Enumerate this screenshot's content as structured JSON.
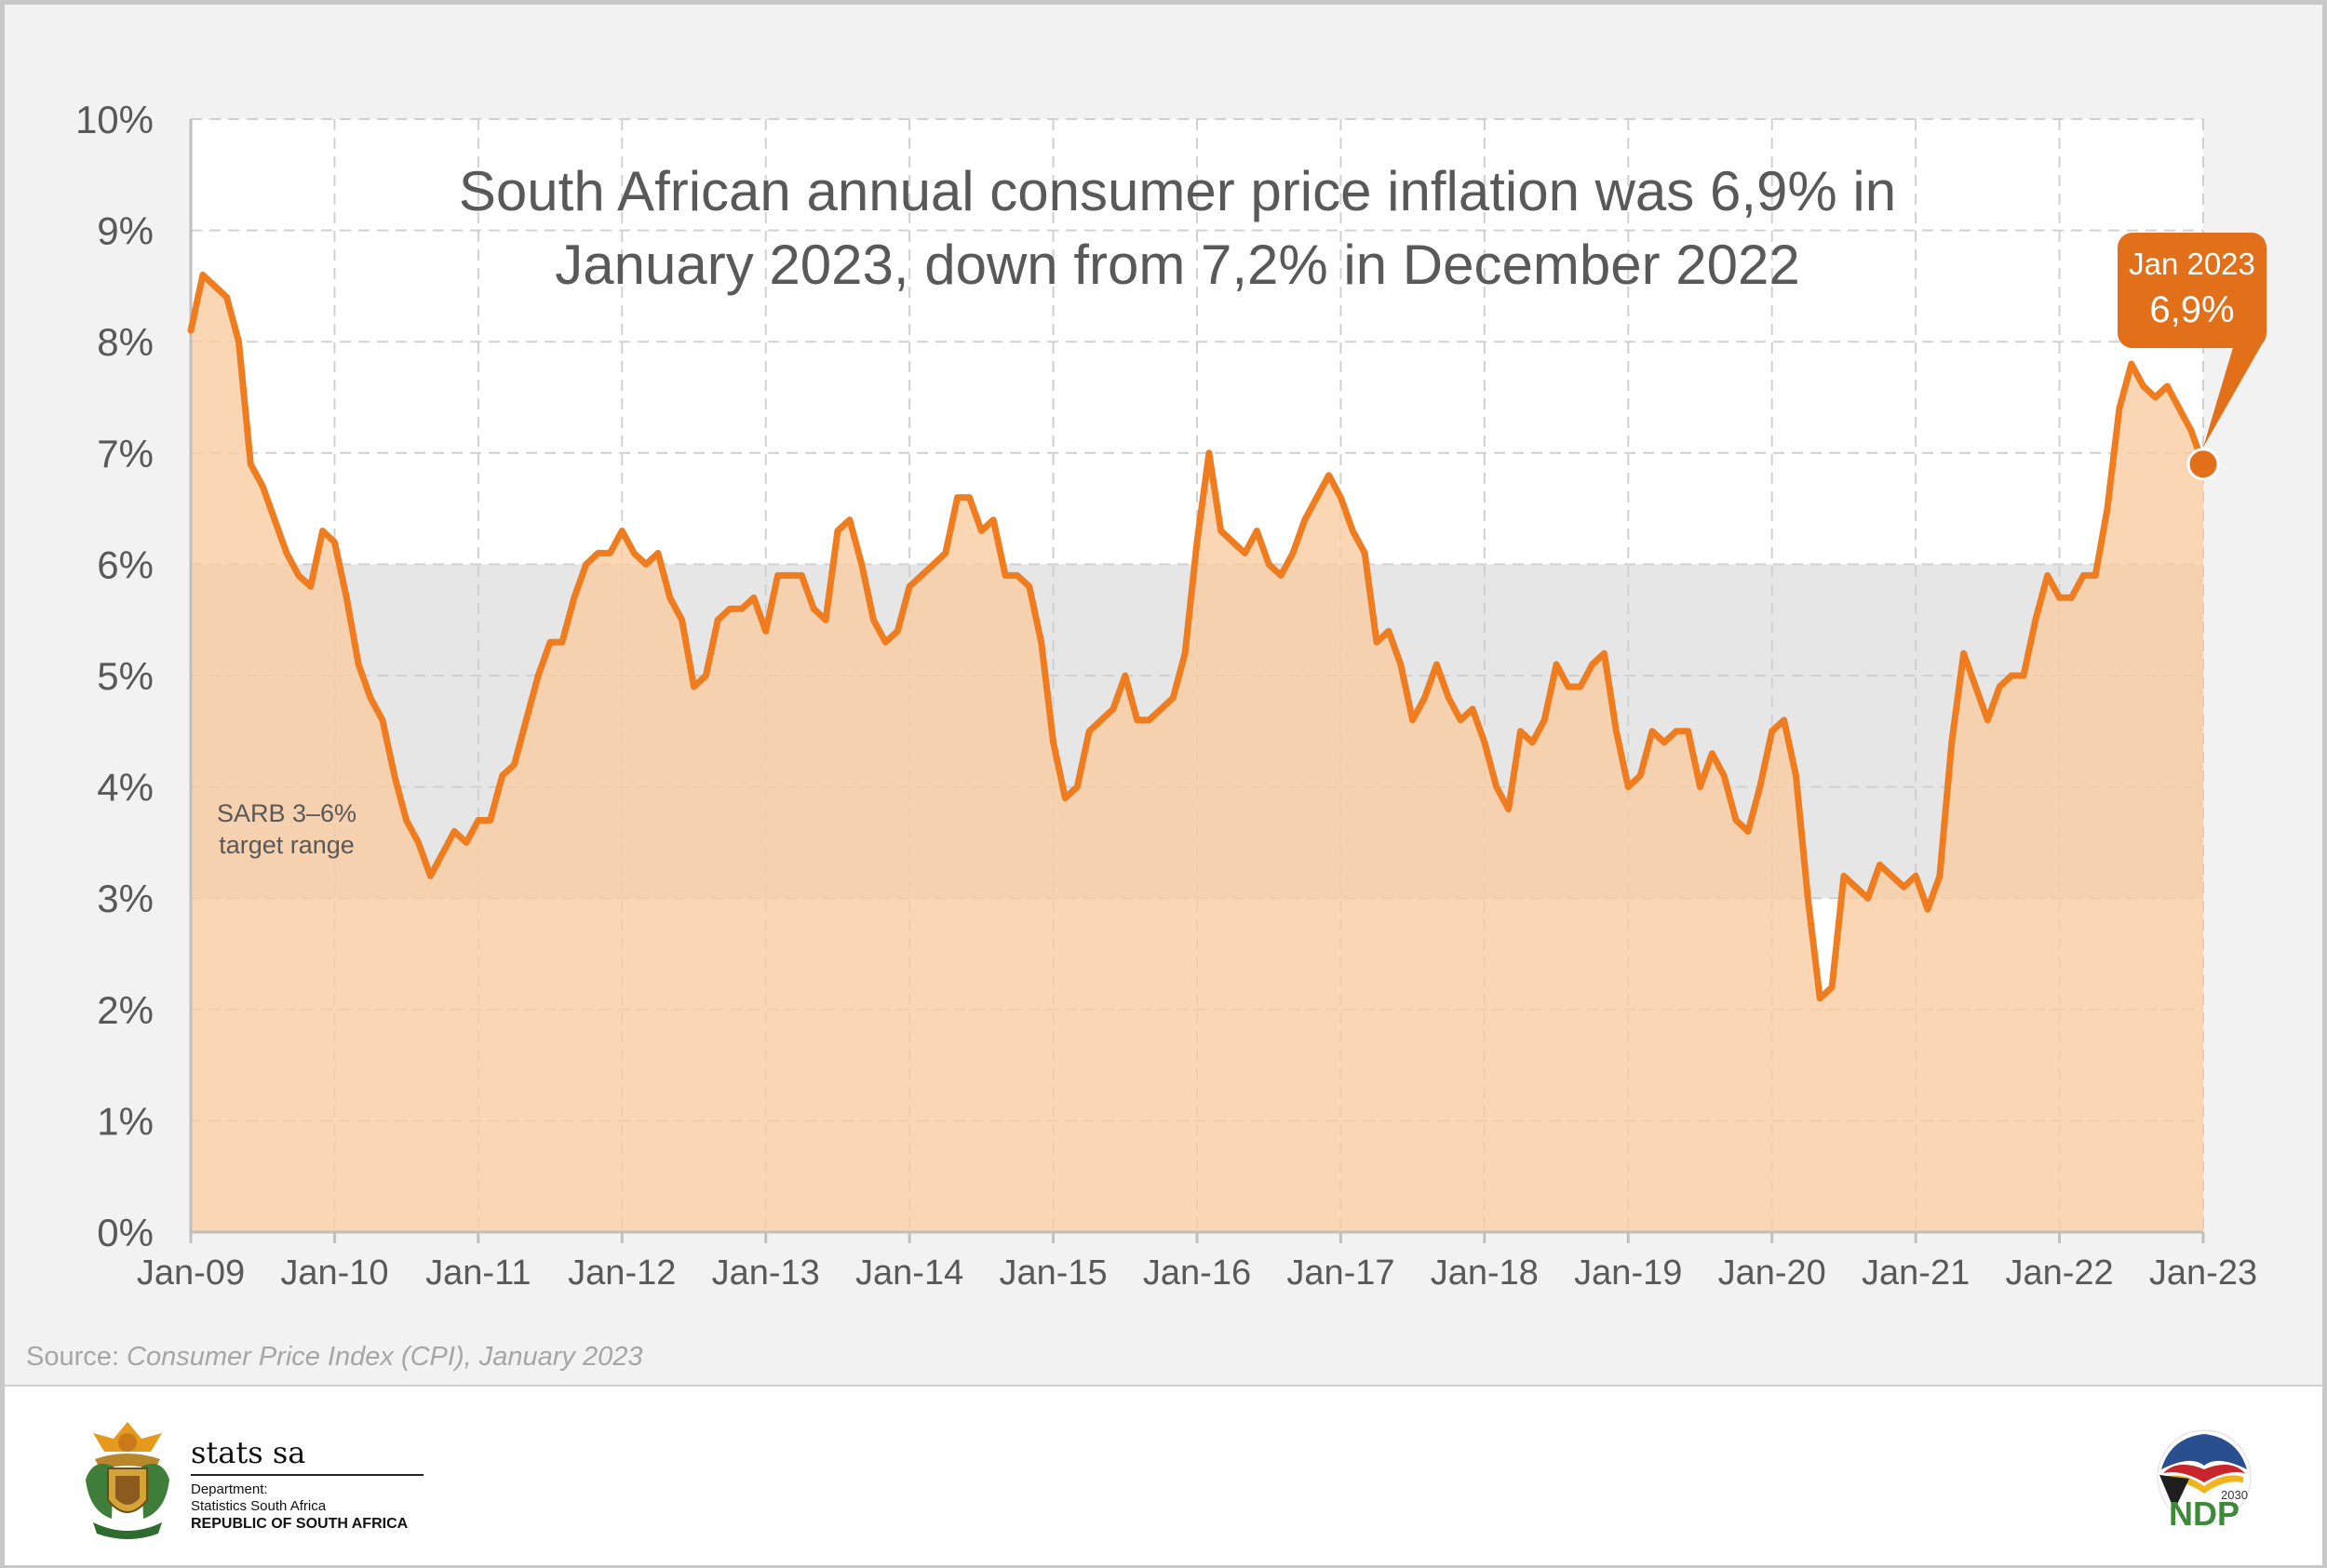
{
  "chart_data": {
    "type": "area",
    "title_line1": "South African annual consumer price inflation was 6,9% in",
    "title_line2": "January 2023, down from 7,2% in December 2022",
    "ylim": [
      0,
      10
    ],
    "y_ticks": [
      "0%",
      "1%",
      "2%",
      "3%",
      "4%",
      "5%",
      "6%",
      "7%",
      "8%",
      "9%",
      "10%"
    ],
    "x_ticks": [
      "Jan-09",
      "Jan-10",
      "Jan-11",
      "Jan-12",
      "Jan-13",
      "Jan-14",
      "Jan-15",
      "Jan-16",
      "Jan-17",
      "Jan-18",
      "Jan-19",
      "Jan-20",
      "Jan-21",
      "Jan-22",
      "Jan-23"
    ],
    "grid": "dashed",
    "target_band": {
      "low": 3,
      "high": 6,
      "label_line1": "SARB 3–6%",
      "label_line2": "target range"
    },
    "callout": {
      "label": "Jan 2023",
      "value": "6,9%"
    },
    "series": [
      {
        "x_start": "Jan-09",
        "frequency": "monthly",
        "values": [
          8.1,
          8.6,
          8.5,
          8.4,
          8.0,
          6.9,
          6.7,
          6.4,
          6.1,
          5.9,
          5.8,
          6.3,
          6.2,
          5.7,
          5.1,
          4.8,
          4.6,
          4.1,
          3.7,
          3.5,
          3.2,
          3.4,
          3.6,
          3.5,
          3.7,
          3.7,
          4.1,
          4.2,
          4.6,
          5.0,
          5.3,
          5.3,
          5.7,
          6.0,
          6.1,
          6.1,
          6.3,
          6.1,
          6.0,
          6.1,
          5.7,
          5.5,
          4.9,
          5.0,
          5.5,
          5.6,
          5.6,
          5.7,
          5.4,
          5.9,
          5.9,
          5.9,
          5.6,
          5.5,
          6.3,
          6.4,
          6.0,
          5.5,
          5.3,
          5.4,
          5.8,
          5.9,
          6.0,
          6.1,
          6.6,
          6.6,
          6.3,
          6.4,
          5.9,
          5.9,
          5.8,
          5.3,
          4.4,
          3.9,
          4.0,
          4.5,
          4.6,
          4.7,
          5.0,
          4.6,
          4.6,
          4.7,
          4.8,
          5.2,
          6.2,
          7.0,
          6.3,
          6.2,
          6.1,
          6.3,
          6.0,
          5.9,
          6.1,
          6.4,
          6.6,
          6.8,
          6.6,
          6.3,
          6.1,
          5.3,
          5.4,
          5.1,
          4.6,
          4.8,
          5.1,
          4.8,
          4.6,
          4.7,
          4.4,
          4.0,
          3.8,
          4.5,
          4.4,
          4.6,
          5.1,
          4.9,
          4.9,
          5.1,
          5.2,
          4.5,
          4.0,
          4.1,
          4.5,
          4.4,
          4.5,
          4.5,
          4.0,
          4.3,
          4.1,
          3.7,
          3.6,
          4.0,
          4.5,
          4.6,
          4.1,
          3.0,
          2.1,
          2.2,
          3.2,
          3.1,
          3.0,
          3.3,
          3.2,
          3.1,
          3.2,
          2.9,
          3.2,
          4.4,
          5.2,
          4.9,
          4.6,
          4.9,
          5.0,
          5.0,
          5.5,
          5.9,
          5.7,
          5.7,
          5.9,
          5.9,
          6.5,
          7.4,
          7.8,
          7.6,
          7.5,
          7.6,
          7.4,
          7.2,
          6.9
        ]
      }
    ]
  },
  "source": {
    "prefix": "Source: ",
    "title": "Consumer Price Index (CPI), January 2023"
  },
  "footer": {
    "brand_name": "stats sa",
    "department": "Department:",
    "agency": "Statistics South Africa",
    "country": "REPUBLIC OF SOUTH AFRICA",
    "ndp_text": "NDP",
    "ndp_year": "2030"
  },
  "colors": {
    "line": "#ef7d1f",
    "area": "#f9cba0",
    "band": "#e6e6e6",
    "callout": "#e2701a",
    "text": "#595959"
  }
}
